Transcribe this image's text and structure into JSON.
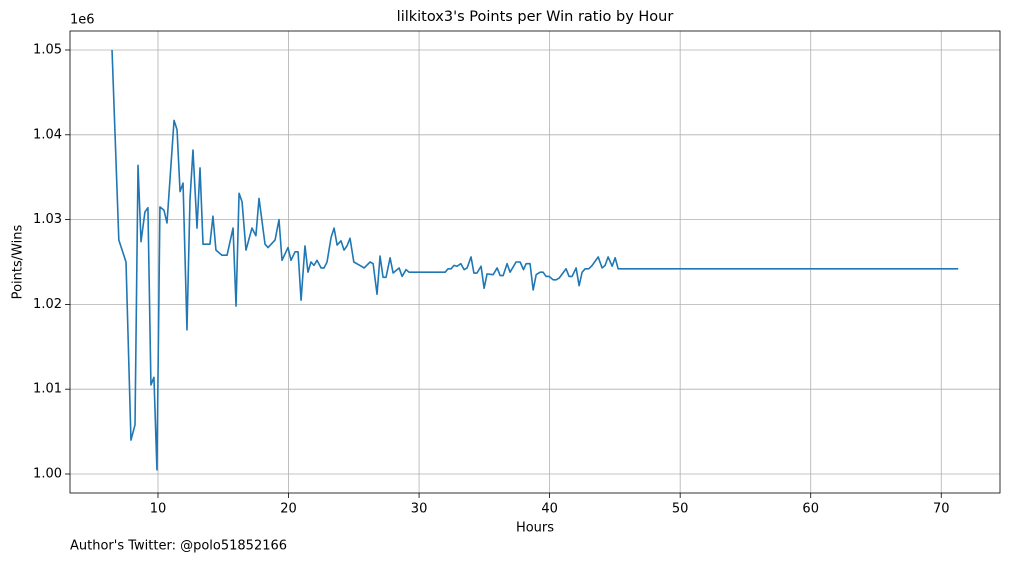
{
  "chart_data": {
    "type": "line",
    "title": "lilkitox3's Points per Win ratio by Hour",
    "x_label": "Hours",
    "y_label": "Points/Wins",
    "y_offset_label": "1e6",
    "footer": "Author's Twitter: @polo51852166",
    "grid": true,
    "xlim": [
      3.26,
      74.5
    ],
    "ylim": [
      997760,
      1052240
    ],
    "xticks": [
      10,
      20,
      30,
      40,
      50,
      60,
      70
    ],
    "yticks": [
      {
        "value": 1000000,
        "label": "1.00"
      },
      {
        "value": 1010000,
        "label": "1.01"
      },
      {
        "value": 1020000,
        "label": "1.02"
      },
      {
        "value": 1030000,
        "label": "1.03"
      },
      {
        "value": 1040000,
        "label": "1.04"
      },
      {
        "value": 1050000,
        "label": "1.05"
      }
    ],
    "series": [
      {
        "color": "#1f77b4",
        "x": [
          6.48,
          7.0,
          7.55,
          7.93,
          8.24,
          8.47,
          8.7,
          9.0,
          9.23,
          9.46,
          9.69,
          9.92,
          10.15,
          10.46,
          10.69,
          11.23,
          11.46,
          11.69,
          11.92,
          12.22,
          12.45,
          12.68,
          12.99,
          13.22,
          13.45,
          13.98,
          14.21,
          14.44,
          14.9,
          15.29,
          15.75,
          15.98,
          16.21,
          16.44,
          16.74,
          17.2,
          17.5,
          17.74,
          18.2,
          18.43,
          18.97,
          19.27,
          19.5,
          19.96,
          20.19,
          20.5,
          20.73,
          20.96,
          21.26,
          21.49,
          21.72,
          21.95,
          22.18,
          22.49,
          22.72,
          22.95,
          23.26,
          23.49,
          23.72,
          24.02,
          24.25,
          24.48,
          24.71,
          25.0,
          25.47,
          25.79,
          26.25,
          26.48,
          26.78,
          27.01,
          27.24,
          27.47,
          27.78,
          28.01,
          28.47,
          28.7,
          29.0,
          29.23,
          32.0,
          32.22,
          32.45,
          32.68,
          32.91,
          33.2,
          33.45,
          33.68,
          33.98,
          34.2,
          34.43,
          34.75,
          34.98,
          35.21,
          35.67,
          35.98,
          36.21,
          36.44,
          36.74,
          36.97,
          37.43,
          37.74,
          38.0,
          38.2,
          38.5,
          38.74,
          38.97,
          39.27,
          39.5,
          39.73,
          39.96,
          40.27,
          40.5,
          40.73,
          41.26,
          41.49,
          41.72,
          42.03,
          42.26,
          42.49,
          42.72,
          43.0,
          43.26,
          43.72,
          44.02,
          44.25,
          44.48,
          44.79,
          45.02,
          45.25,
          71.3
        ],
        "values": [
          1050000,
          1027600,
          1025000,
          1004000,
          1005800,
          1036400,
          1027400,
          1030900,
          1031400,
          1010500,
          1011400,
          1000500,
          1031500,
          1031100,
          1029600,
          1041700,
          1040600,
          1033300,
          1034300,
          1017000,
          1032300,
          1038200,
          1029000,
          1036100,
          1027100,
          1027100,
          1030400,
          1026400,
          1025800,
          1025800,
          1029000,
          1019800,
          1033100,
          1032100,
          1026400,
          1029000,
          1028100,
          1032500,
          1027100,
          1026700,
          1027600,
          1030000,
          1025200,
          1026700,
          1025200,
          1026200,
          1026200,
          1020500,
          1026900,
          1023800,
          1025000,
          1024600,
          1025200,
          1024300,
          1024300,
          1025000,
          1027900,
          1029000,
          1027000,
          1027500,
          1026400,
          1026900,
          1027800,
          1025000,
          1024600,
          1024300,
          1025000,
          1024800,
          1021200,
          1025700,
          1023200,
          1023200,
          1025500,
          1023700,
          1024300,
          1023300,
          1024100,
          1023800,
          1023800,
          1024200,
          1024200,
          1024600,
          1024500,
          1024800,
          1024100,
          1024300,
          1025600,
          1023700,
          1023700,
          1024500,
          1021900,
          1023600,
          1023500,
          1024300,
          1023400,
          1023400,
          1024800,
          1023800,
          1025000,
          1025000,
          1024100,
          1024800,
          1024800,
          1021700,
          1023500,
          1023800,
          1023800,
          1023300,
          1023300,
          1022900,
          1022900,
          1023100,
          1024200,
          1023300,
          1023300,
          1024300,
          1022200,
          1023800,
          1024200,
          1024200,
          1024600,
          1025600,
          1024300,
          1024600,
          1025600,
          1024500,
          1025500,
          1024200,
          1024200
        ]
      }
    ]
  }
}
